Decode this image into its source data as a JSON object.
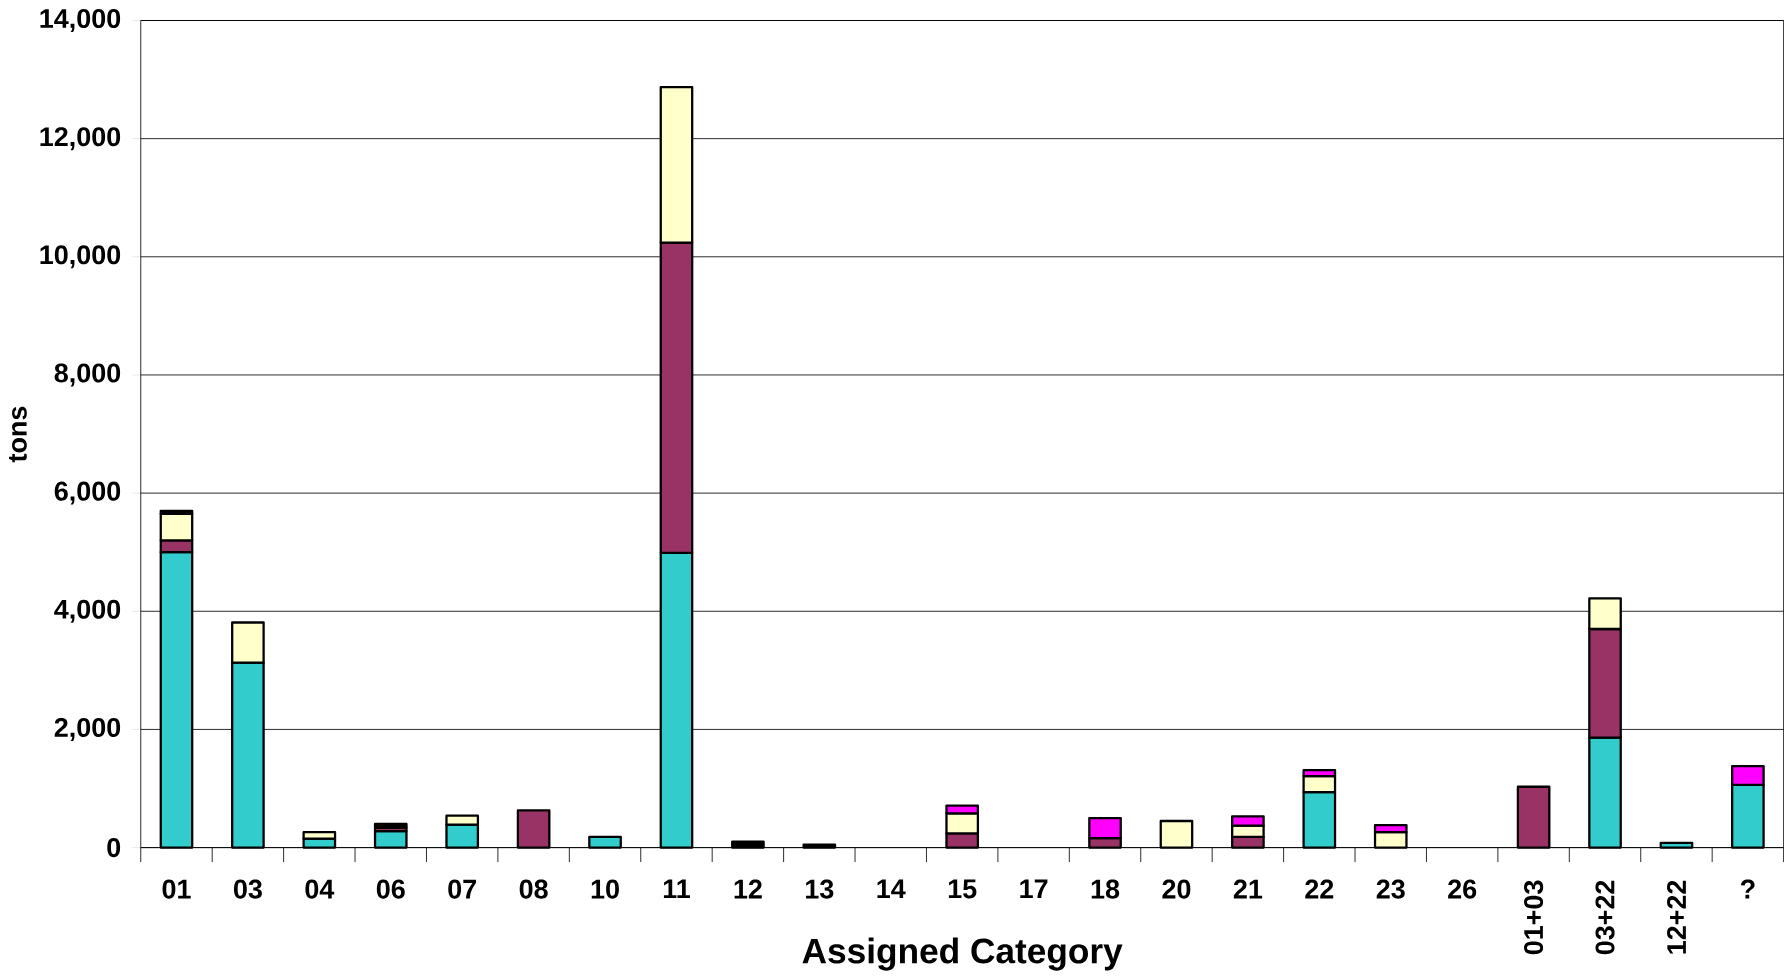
{
  "chart_data": {
    "type": "bar",
    "stacked": true,
    "xlabel": "Assigned Category",
    "ylabel": "tons",
    "categories": [
      "01",
      "03",
      "04",
      "06",
      "07",
      "08",
      "10",
      "11",
      "12",
      "13",
      "14",
      "15",
      "17",
      "18",
      "20",
      "21",
      "22",
      "23",
      "26",
      "01+03",
      "03+22",
      "12+22",
      "?"
    ],
    "series": [
      {
        "color": "#33cccc",
        "values": [
          5000,
          3130,
          150,
          280,
          390,
          null,
          180,
          4990,
          null,
          null,
          null,
          null,
          null,
          null,
          null,
          null,
          940,
          null,
          null,
          null,
          1860,
          80,
          1060
        ]
      },
      {
        "color": "#993366",
        "values": [
          200,
          null,
          null,
          60,
          null,
          630,
          null,
          5250,
          null,
          null,
          null,
          240,
          null,
          160,
          null,
          180,
          null,
          null,
          null,
          1030,
          1840,
          null,
          null
        ]
      },
      {
        "color": "#ffffcc",
        "values": [
          450,
          680,
          110,
          null,
          150,
          null,
          null,
          2630,
          null,
          null,
          null,
          340,
          null,
          null,
          450,
          190,
          270,
          260,
          null,
          null,
          520,
          null,
          null
        ]
      },
      {
        "color": "#ff00ff",
        "values": [
          null,
          null,
          null,
          null,
          null,
          null,
          null,
          null,
          null,
          null,
          null,
          130,
          null,
          340,
          null,
          160,
          100,
          120,
          null,
          null,
          null,
          null,
          320
        ]
      },
      {
        "color": "#000000",
        "values": [
          50,
          null,
          null,
          60,
          null,
          null,
          null,
          null,
          100,
          50,
          null,
          null,
          null,
          null,
          null,
          null,
          null,
          null,
          null,
          null,
          null,
          null,
          null
        ]
      }
    ],
    "ylim": [
      0,
      14000
    ],
    "yticks": [
      {
        "value": 0,
        "label": "0"
      },
      {
        "value": 2000,
        "label": "2,000"
      },
      {
        "value": 4000,
        "label": "4,000"
      },
      {
        "value": 6000,
        "label": "6,000"
      },
      {
        "value": 8000,
        "label": "8,000"
      },
      {
        "value": 10000,
        "label": "10,000"
      },
      {
        "value": 12000,
        "label": "12,000"
      },
      {
        "value": 14000,
        "label": "14,000"
      }
    ],
    "grid": "y"
  }
}
